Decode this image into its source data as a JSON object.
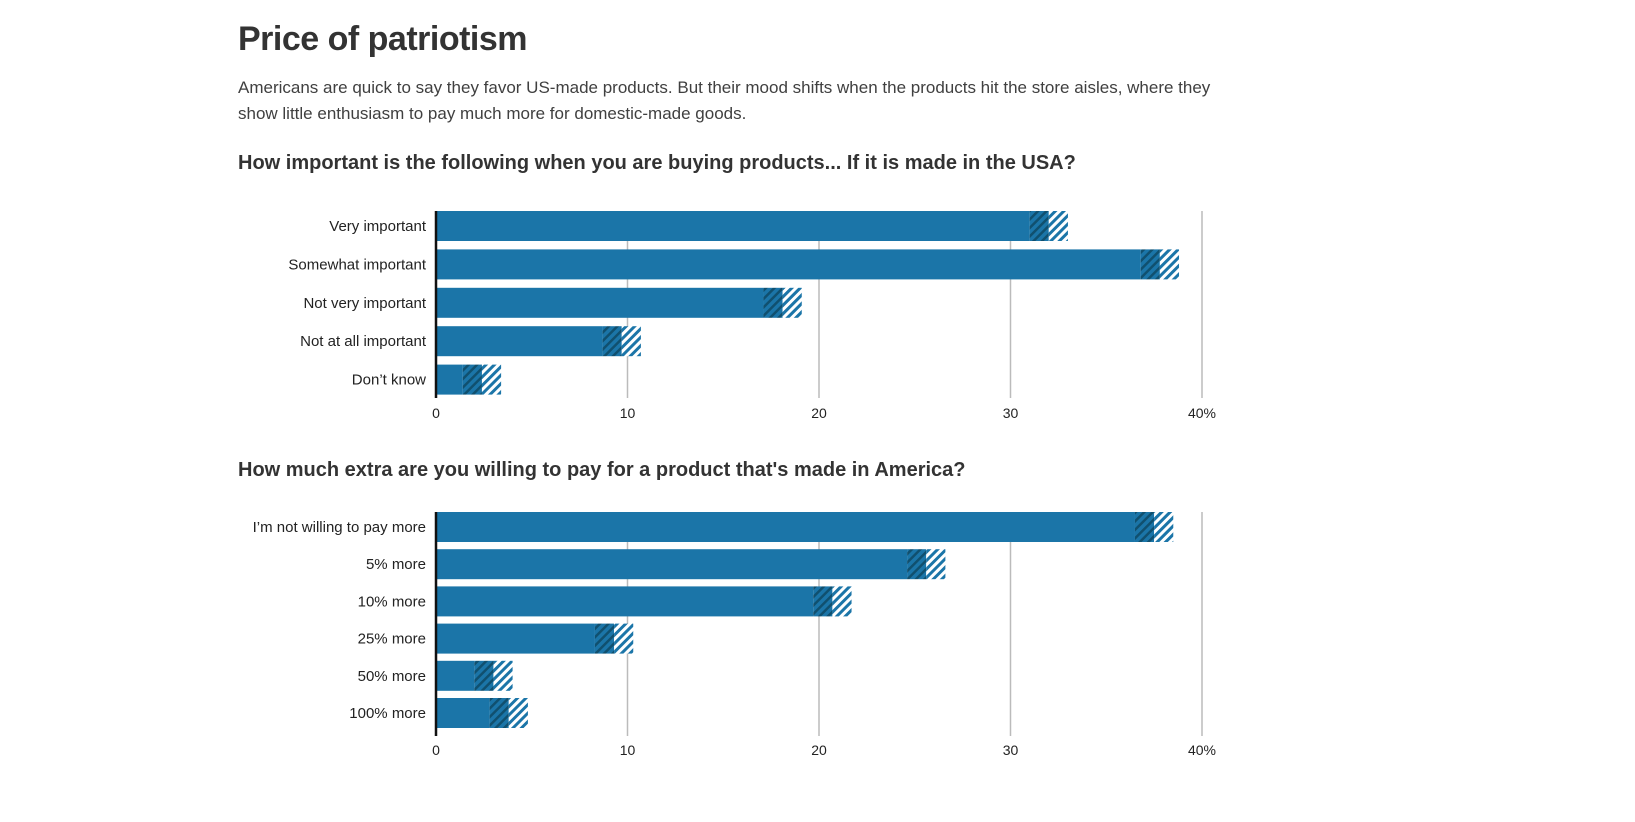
{
  "title": "Price of patriotism",
  "dek": "Americans are quick to say they favor US-made products. But their mood shifts when the products hit the store aisles, where they show little enthusiasm to pay much more for domestic-made goods.",
  "colors": {
    "bar": "#1b75a8",
    "gridline": "#bbbbbb",
    "axis": "#111111"
  },
  "chart_data": [
    {
      "type": "bar",
      "orientation": "horizontal",
      "title": "How important is the following when you are buying products... If it is made in the USA?",
      "categories": [
        "Very important",
        "Somewhat important",
        "Not very important",
        "Not at all important",
        "Don’t know"
      ],
      "values": [
        32,
        37.8,
        18.1,
        9.7,
        2.4
      ],
      "margin_of_error": [
        1,
        1,
        1,
        1,
        1
      ],
      "xlim": [
        0,
        40
      ],
      "ticks": [
        "0",
        "10",
        "20",
        "30",
        "40%"
      ],
      "grid": true
    },
    {
      "type": "bar",
      "orientation": "horizontal",
      "title": "How much extra are you willing to pay for a product that's made in America?",
      "categories": [
        "I’m not willing to pay more",
        "5% more",
        "10% more",
        "25% more",
        "50% more",
        "100% more"
      ],
      "values": [
        37.5,
        25.6,
        20.7,
        9.3,
        3.0,
        3.8
      ],
      "margin_of_error": [
        1,
        1,
        1,
        1,
        1,
        1
      ],
      "xlim": [
        0,
        40
      ],
      "ticks": [
        "0",
        "10",
        "20",
        "30",
        "40%"
      ],
      "grid": true
    }
  ]
}
